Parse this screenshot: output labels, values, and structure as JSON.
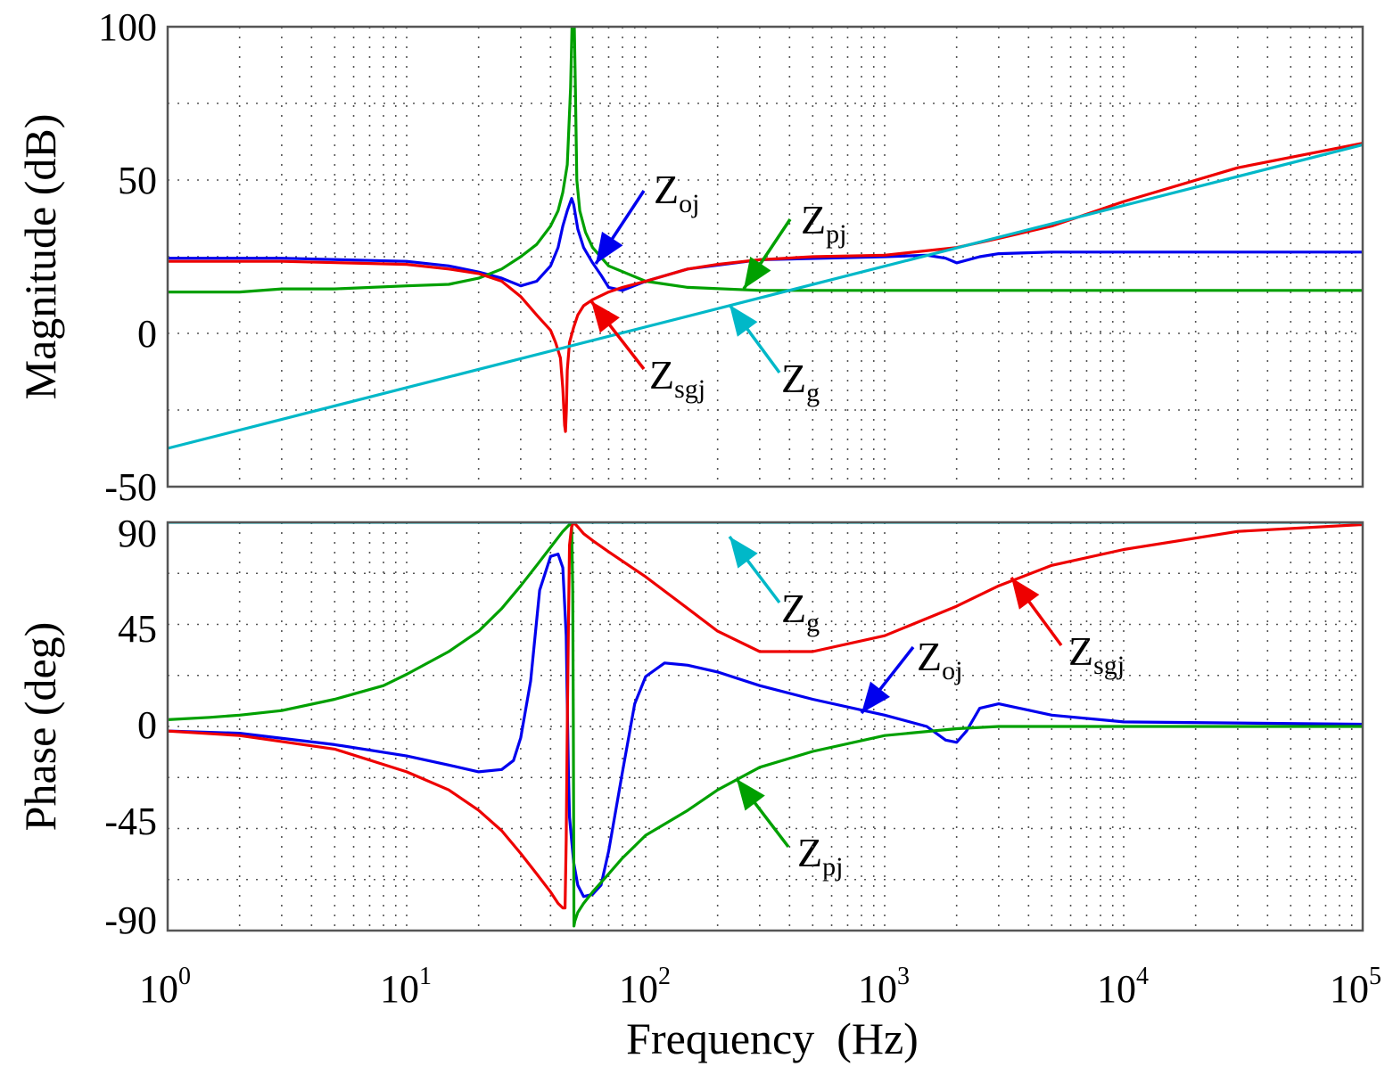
{
  "chart_data": [
    {
      "type": "line",
      "panel": "magnitude",
      "title": "",
      "xlabel": "",
      "ylabel": "Magnitude (dB)",
      "xscale": "log",
      "xlim": [
        1,
        100000
      ],
      "ylim": [
        -50,
        100
      ],
      "y_ticks": [
        "100",
        "50",
        "0",
        "-50"
      ],
      "grid": true,
      "series": [
        {
          "key": "zoj",
          "color": "#0000ee",
          "x": [
            1,
            3,
            10,
            15,
            20,
            25,
            30,
            35,
            40,
            43,
            45,
            47,
            49,
            50,
            52,
            55,
            60,
            65,
            70,
            80,
            100,
            150,
            300,
            1000,
            1500,
            1800,
            2000,
            2500,
            3000,
            5000,
            10000,
            100000
          ],
          "y": [
            24.5,
            24.5,
            23.5,
            22,
            20,
            18,
            15.5,
            17,
            22,
            28,
            35,
            40,
            44,
            42,
            34,
            28,
            23,
            19,
            15,
            14,
            17,
            21,
            24,
            25,
            25.5,
            24.5,
            23,
            25,
            26,
            26.5,
            26.5,
            26.5
          ]
        },
        {
          "key": "zpj",
          "color": "#00a000",
          "x": [
            1,
            2,
            3,
            5,
            10,
            15,
            20,
            25,
            30,
            35,
            40,
            43,
            45,
            47,
            48.5,
            49.2,
            49.7,
            50,
            50.3,
            50.8,
            51.5,
            53,
            56,
            60,
            70,
            100,
            150,
            300,
            1000,
            10000,
            100000
          ],
          "y": [
            13.5,
            13.5,
            14.5,
            14.5,
            15.5,
            16,
            18,
            21,
            25,
            29,
            35,
            40,
            46,
            55,
            80,
            100,
            100,
            100,
            100,
            80,
            50,
            40,
            33,
            28,
            22,
            17,
            15,
            14,
            14,
            14,
            14
          ]
        },
        {
          "key": "zsgj",
          "color": "#ee0000",
          "x": [
            1,
            3,
            10,
            15,
            20,
            25,
            30,
            35,
            40,
            42,
            44,
            45,
            45.8,
            46.2,
            46.6,
            47,
            48,
            50,
            52,
            55,
            60,
            70,
            80,
            100,
            150,
            200,
            300,
            500,
            1000,
            2000,
            3000,
            5000,
            10000,
            30000,
            100000
          ],
          "y": [
            23.5,
            23.5,
            22.5,
            21,
            19.5,
            17,
            12,
            6,
            1,
            -3,
            -8,
            -18,
            -30,
            -32,
            -25,
            -12,
            -3,
            2,
            6,
            9,
            11,
            13.5,
            15,
            17,
            21,
            22.5,
            24,
            25,
            25.5,
            28,
            31,
            35,
            43,
            54,
            62
          ]
        },
        {
          "key": "zg",
          "color": "#00b8c8",
          "x": [
            1,
            100000
          ],
          "y": [
            -37.5,
            61.5
          ]
        }
      ],
      "annotations": [
        {
          "key": "zoj",
          "base": "Z",
          "sub": "oj",
          "color": "#0000ee"
        },
        {
          "key": "zpj",
          "base": "Z",
          "sub": "pj",
          "color": "#00a000"
        },
        {
          "key": "zsgj",
          "base": "Z",
          "sub": "sgj",
          "color": "#ee0000"
        },
        {
          "key": "zg",
          "base": "Z",
          "sub": "g",
          "color": "#00b8c8"
        }
      ]
    },
    {
      "type": "line",
      "panel": "phase",
      "title": "",
      "xlabel": "Frequency  (Hz)",
      "ylabel": "Phase (deg)",
      "xscale": "log",
      "xlim": [
        1,
        100000
      ],
      "ylim": [
        -90,
        90
      ],
      "y_ticks": [
        "90",
        "45",
        "0",
        "-45",
        "-90"
      ],
      "x_ticks": [
        {
          "base": "10",
          "exp": "0"
        },
        {
          "base": "10",
          "exp": "1"
        },
        {
          "base": "10",
          "exp": "2"
        },
        {
          "base": "10",
          "exp": "3"
        },
        {
          "base": "10",
          "exp": "4"
        },
        {
          "base": "10",
          "exp": "5"
        }
      ],
      "grid": true,
      "series": [
        {
          "key": "zoj",
          "color": "#0000ee",
          "x": [
            1,
            2,
            5,
            10,
            15,
            20,
            25,
            28,
            30,
            33,
            36,
            40,
            43,
            45,
            46.5,
            47,
            47.5,
            48,
            50,
            52,
            55,
            60,
            65,
            70,
            80,
            90,
            100,
            120,
            150,
            200,
            300,
            500,
            1000,
            1500,
            1800,
            2000,
            2200,
            2500,
            3000,
            5000,
            10000,
            100000
          ],
          "y": [
            -2,
            -3,
            -8,
            -13,
            -17,
            -20,
            -19,
            -15,
            -5,
            20,
            60,
            75,
            76,
            70,
            40,
            10,
            -20,
            -40,
            -60,
            -70,
            -75,
            -74,
            -70,
            -55,
            -20,
            10,
            22,
            28,
            27,
            24,
            18,
            12,
            5,
            0,
            -6,
            -7,
            -2,
            8,
            10,
            5,
            2,
            1
          ]
        },
        {
          "key": "zpj",
          "color": "#00a000",
          "x": [
            1,
            1.5,
            2,
            3,
            5,
            8,
            10,
            15,
            20,
            25,
            30,
            35,
            40,
            45,
            48,
            49,
            49.5,
            49.8,
            50.1,
            50.5,
            52,
            55,
            60,
            70,
            80,
            100,
            150,
            200,
            300,
            500,
            1000,
            2000,
            3000,
            10000,
            100000
          ],
          "y": [
            3,
            4,
            5,
            7,
            12,
            18,
            23,
            33,
            42,
            52,
            62,
            71,
            79,
            86,
            89,
            89,
            60,
            0,
            -88,
            -86,
            -82,
            -78,
            -73,
            -65,
            -58,
            -48,
            -37,
            -28,
            -18,
            -11,
            -4,
            -1,
            0,
            0,
            0
          ]
        },
        {
          "key": "zsgj",
          "color": "#ee0000",
          "x": [
            1,
            2,
            5,
            10,
            15,
            20,
            25,
            30,
            35,
            40,
            43,
            45,
            46,
            46.5,
            47,
            47.5,
            48,
            49,
            50,
            52,
            55,
            60,
            70,
            100,
            150,
            200,
            300,
            500,
            1000,
            2000,
            3000,
            5000,
            10000,
            30000,
            100000
          ],
          "y": [
            -2,
            -4,
            -10,
            -20,
            -28,
            -37,
            -46,
            -56,
            -65,
            -73,
            -78,
            -80,
            -80,
            -50,
            0,
            45,
            80,
            88,
            90,
            88,
            85,
            82,
            77,
            66,
            52,
            42,
            33,
            33,
            40,
            53,
            62,
            71,
            78,
            86,
            89
          ]
        },
        {
          "key": "zg",
          "color": "#00b8c8",
          "x": [
            1,
            100000
          ],
          "y": [
            90,
            90
          ]
        }
      ],
      "annotations": [
        {
          "key": "zg",
          "base": "Z",
          "sub": "g",
          "color": "#00b8c8"
        },
        {
          "key": "zoj",
          "base": "Z",
          "sub": "oj",
          "color": "#0000ee"
        },
        {
          "key": "zsgj",
          "base": "Z",
          "sub": "sgj",
          "color": "#ee0000"
        },
        {
          "key": "zpj",
          "base": "Z",
          "sub": "pj",
          "color": "#00a000"
        }
      ]
    }
  ]
}
